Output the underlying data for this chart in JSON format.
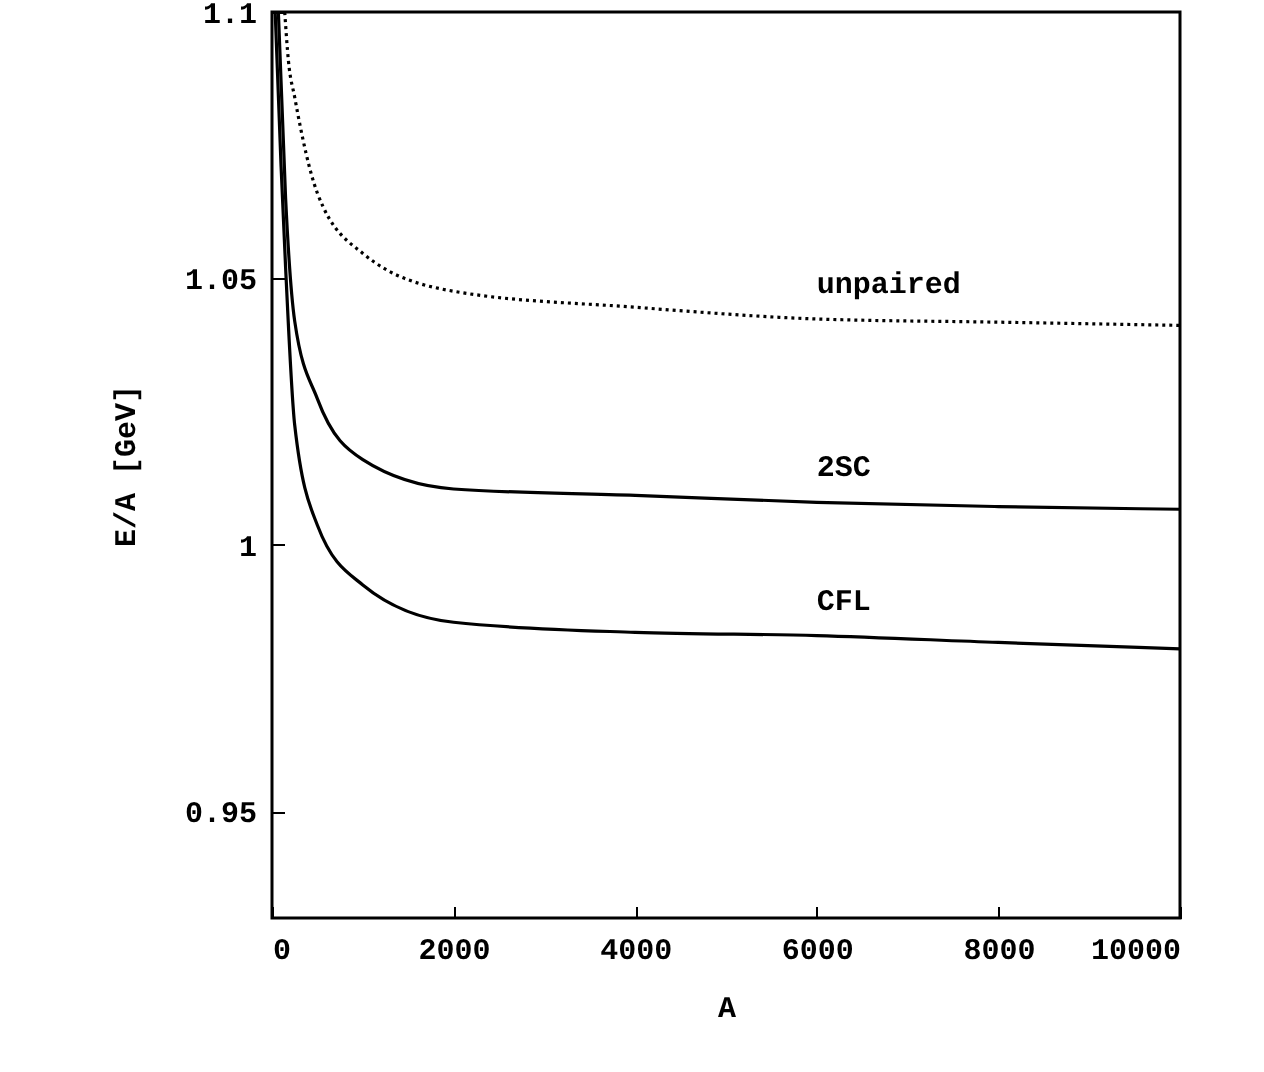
{
  "chart_data": {
    "type": "line",
    "xlabel": "A",
    "ylabel": "E/A [GeV]",
    "xlim": [
      0,
      10000
    ],
    "xticks": [
      0,
      2000,
      4000,
      6000,
      8000,
      10000
    ],
    "ylim": [
      0.93,
      1.1
    ],
    "yticks": [
      0.95,
      1,
      1.05,
      1.1
    ],
    "grid": false,
    "marker": "none",
    "series": [
      {
        "name": "unpaired",
        "color": "#000000",
        "line_style": "dotted",
        "x": [
          140,
          180,
          250,
          500,
          1000,
          2000,
          4000,
          6000,
          8000,
          10000
        ],
        "values": [
          1.1,
          1.091,
          1.084,
          1.066,
          1.0547,
          1.0476,
          1.0446,
          1.0424,
          1.0418,
          1.0412
        ]
      },
      {
        "name": "2SC",
        "color": "#000000",
        "line_style": "solid",
        "x": [
          70,
          150,
          250,
          500,
          1000,
          2000,
          4000,
          6000,
          8000,
          10000
        ],
        "values": [
          1.1,
          1.065,
          1.042,
          1.0274,
          1.016,
          1.0105,
          1.0093,
          1.008,
          1.0072,
          1.0067
        ]
      },
      {
        "name": "CFL",
        "color": "#000000",
        "line_style": "solid",
        "x": [
          35,
          100,
          150,
          250,
          500,
          1000,
          2000,
          4000,
          6000,
          8000,
          10000
        ],
        "values": [
          1.1,
          1.071,
          1.052,
          1.0225,
          1.0037,
          0.9925,
          0.9855,
          0.9836,
          0.983,
          0.9817,
          0.9805
        ]
      }
    ]
  }
}
